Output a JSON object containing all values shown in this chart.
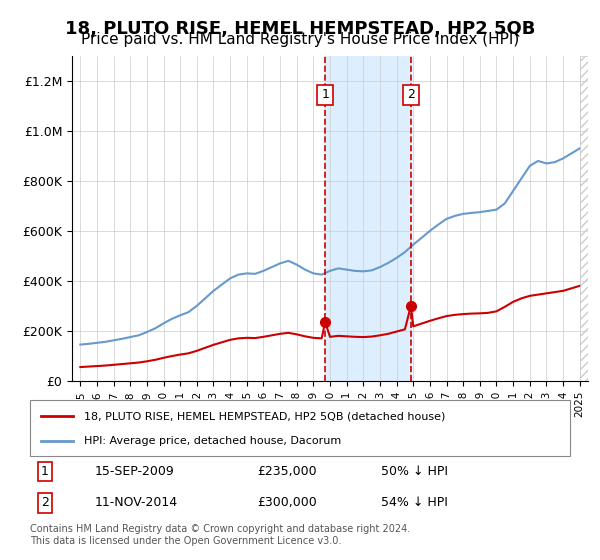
{
  "title": "18, PLUTO RISE, HEMEL HEMPSTEAD, HP2 5QB",
  "subtitle": "Price paid vs. HM Land Registry's House Price Index (HPI)",
  "title_fontsize": 13,
  "subtitle_fontsize": 11,
  "red_line_label": "18, PLUTO RISE, HEMEL HEMPSTEAD, HP2 5QB (detached house)",
  "blue_line_label": "HPI: Average price, detached house, Dacorum",
  "sale1_date": "15-SEP-2009",
  "sale1_price": 235000,
  "sale1_pct": "50% ↓ HPI",
  "sale1_x": 2009.71,
  "sale2_date": "11-NOV-2014",
  "sale2_price": 300000,
  "sale2_pct": "54% ↓ HPI",
  "sale2_x": 2014.86,
  "red_color": "#cc0000",
  "blue_color": "#6699cc",
  "shade_color": "#ddeeff",
  "ylim": [
    0,
    1300000
  ],
  "xlim": [
    1994.5,
    2025.5
  ],
  "footer": "Contains HM Land Registry data © Crown copyright and database right 2024.\nThis data is licensed under the Open Government Licence v3.0.",
  "hpi_years": [
    1995,
    1995.5,
    1996,
    1996.5,
    1997,
    1997.5,
    1998,
    1998.5,
    1999,
    1999.5,
    2000,
    2000.5,
    2001,
    2001.5,
    2002,
    2002.5,
    2003,
    2003.5,
    2004,
    2004.5,
    2005,
    2005.5,
    2006,
    2006.5,
    2007,
    2007.5,
    2008,
    2008.5,
    2009,
    2009.5,
    2010,
    2010.5,
    2011,
    2011.5,
    2012,
    2012.5,
    2013,
    2013.5,
    2014,
    2014.5,
    2015,
    2015.5,
    2016,
    2016.5,
    2017,
    2017.5,
    2018,
    2018.5,
    2019,
    2019.5,
    2020,
    2020.5,
    2021,
    2021.5,
    2022,
    2022.5,
    2023,
    2023.5,
    2024,
    2024.5,
    2025
  ],
  "hpi_values": [
    145000,
    148000,
    152000,
    156000,
    162000,
    168000,
    175000,
    182000,
    195000,
    210000,
    230000,
    248000,
    262000,
    275000,
    300000,
    330000,
    360000,
    385000,
    410000,
    425000,
    430000,
    428000,
    440000,
    455000,
    470000,
    480000,
    465000,
    445000,
    430000,
    425000,
    440000,
    450000,
    445000,
    440000,
    438000,
    442000,
    455000,
    472000,
    492000,
    515000,
    545000,
    572000,
    600000,
    625000,
    648000,
    660000,
    668000,
    672000,
    675000,
    680000,
    685000,
    710000,
    760000,
    810000,
    860000,
    880000,
    870000,
    875000,
    890000,
    910000,
    930000
  ],
  "red_years": [
    1995,
    1995.5,
    1996,
    1996.5,
    1997,
    1997.5,
    1998,
    1998.5,
    1999,
    1999.5,
    2000,
    2000.5,
    2001,
    2001.5,
    2002,
    2002.5,
    2003,
    2003.5,
    2004,
    2004.5,
    2005,
    2005.5,
    2006,
    2006.5,
    2007,
    2007.5,
    2008,
    2008.5,
    2009,
    2009.5,
    2009.71,
    2010,
    2010.5,
    2011,
    2011.5,
    2012,
    2012.5,
    2013,
    2013.5,
    2014,
    2014.5,
    2014.86,
    2015,
    2015.5,
    2016,
    2016.5,
    2017,
    2017.5,
    2018,
    2018.5,
    2019,
    2019.5,
    2020,
    2020.5,
    2021,
    2021.5,
    2022,
    2022.5,
    2023,
    2023.5,
    2024,
    2024.5,
    2025
  ],
  "red_values": [
    55000,
    57000,
    59000,
    61000,
    64000,
    67000,
    70000,
    73000,
    78000,
    84000,
    92000,
    99000,
    105000,
    110000,
    120000,
    132000,
    144000,
    154000,
    164000,
    170000,
    172000,
    171000,
    176000,
    182000,
    188000,
    192000,
    186000,
    178000,
    172000,
    170000,
    235000,
    176000,
    180000,
    178000,
    176000,
    175000,
    177000,
    182000,
    188000,
    197000,
    206000,
    300000,
    218000,
    229000,
    240000,
    250000,
    259000,
    264000,
    267000,
    269000,
    270000,
    272000,
    278000,
    296000,
    316000,
    330000,
    340000,
    345000,
    350000,
    355000,
    360000,
    370000,
    380000
  ]
}
